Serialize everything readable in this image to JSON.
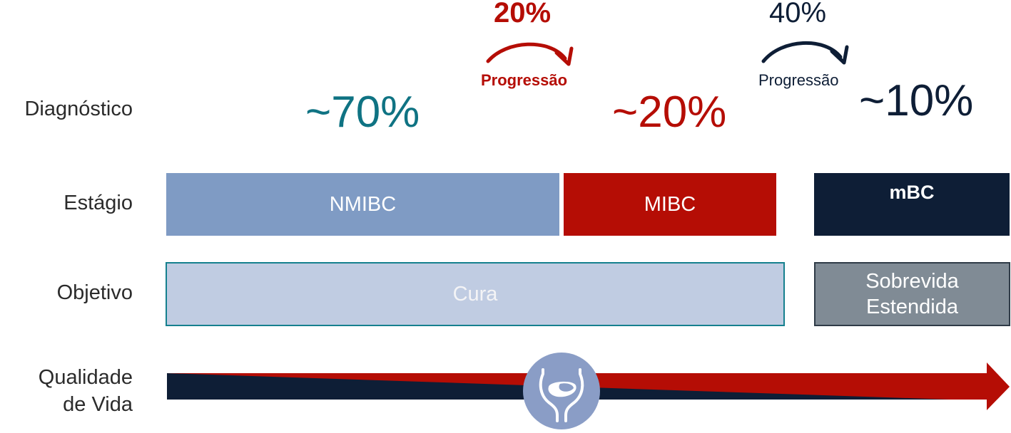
{
  "rows": {
    "diagnostico": "Diagnóstico",
    "estagio": "Estágio",
    "objetivo": "Objetivo",
    "qualidade_line1": "Qualidade",
    "qualidade_line2": "de Vida"
  },
  "diagnosis": {
    "nmibc_pct": "~70%",
    "mibc_pct": "~20%",
    "mbc_pct": "~10%"
  },
  "progression": {
    "first_rate": "20%",
    "first_label": "Progressão",
    "second_rate": "40%",
    "second_label": "Progressão"
  },
  "stages": {
    "nmibc": "NMIBC",
    "mibc": "MIBC",
    "mbc": "mBC"
  },
  "goals": {
    "cure": "Cura",
    "extended_line1": "Sobrevida",
    "extended_line2": "Estendida"
  },
  "colors": {
    "teal": "#0f7383",
    "red": "#b50d05",
    "navy": "#0e1e36",
    "nmibc_blue": "#7f9bc4",
    "cure_fill": "#c0cce2",
    "cure_border": "#15808e",
    "grey_box": "#808b95",
    "circle": "#8a9dc6"
  },
  "icons": {
    "bladder": "bladder-icon"
  }
}
